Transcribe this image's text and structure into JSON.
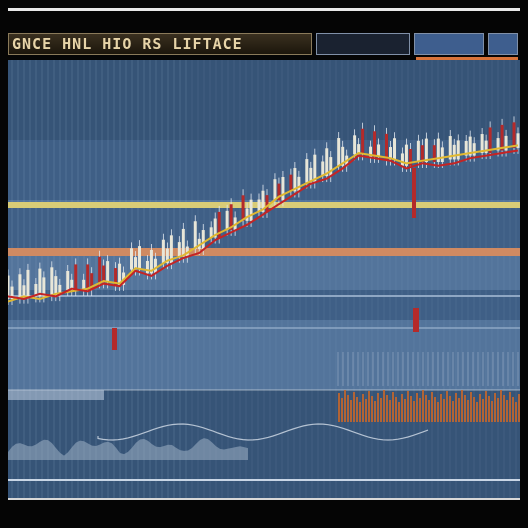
{
  "window": {
    "title": "GNCE HNL HIO RS LIFTACE"
  },
  "colors": {
    "plot_background": "#3f5f86",
    "band_light": "#6485ad",
    "band_dark": "#2f4a6c",
    "candle_up": "#e8e6d8",
    "candle_down": "#b42a2a",
    "line_red": "#c42424",
    "line_yellow": "#e0b830",
    "level_yellow": "#d9cc76",
    "level_orange": "#d08a62",
    "volume": "#c0662e"
  },
  "chart_data": {
    "type": "candlestick",
    "levels": [
      "upper-level",
      "lower-level"
    ],
    "series": [
      {
        "values": [
          30,
          29,
          31,
          30,
          33,
          32,
          35,
          34,
          40,
          38,
          42,
          45,
          47,
          52,
          55,
          58,
          62,
          66,
          70,
          74,
          76,
          80,
          85,
          84,
          83,
          80,
          82,
          81,
          82,
          84,
          85,
          86,
          87
        ]
      },
      {
        "values": [
          28,
          30,
          29,
          31,
          32,
          33,
          36,
          35,
          41,
          40,
          44,
          46,
          50,
          54,
          57,
          61,
          64,
          69,
          72,
          75,
          78,
          82,
          86,
          85,
          84,
          82,
          83,
          84,
          85,
          86,
          87,
          88,
          89
        ]
      }
    ]
  }
}
